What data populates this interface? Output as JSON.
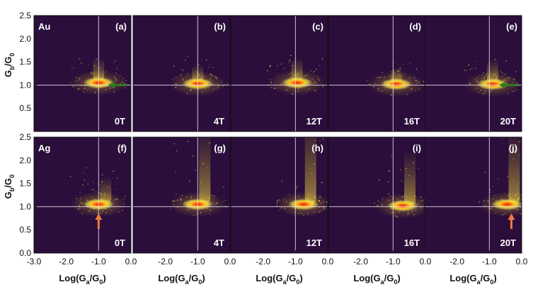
{
  "chart_data": {
    "type": "heatmap",
    "rows": [
      {
        "material": "Au",
        "panels": [
          {
            "id": "(a)",
            "field": "0T",
            "center_x": -1.0,
            "center_y": 1.05,
            "tail": 0.18,
            "arrow": "green-left"
          },
          {
            "id": "(b)",
            "field": "4T",
            "center_x": -1.0,
            "center_y": 1.03,
            "tail": 0.14
          },
          {
            "id": "(c)",
            "field": "12T",
            "center_x": -0.95,
            "center_y": 1.05,
            "tail": 0.18
          },
          {
            "id": "(d)",
            "field": "16T",
            "center_x": -0.9,
            "center_y": 1.02,
            "tail": 0.12
          },
          {
            "id": "(e)",
            "field": "20T",
            "center_x": -0.9,
            "center_y": 1.02,
            "tail": 0.18,
            "arrow": "green-left"
          }
        ]
      },
      {
        "material": "Ag",
        "panels": [
          {
            "id": "(f)",
            "field": "0T",
            "center_x": -1.0,
            "center_y": 1.05,
            "tail": 0.2,
            "arrow": "orange-up"
          },
          {
            "id": "(g)",
            "field": "4T",
            "center_x": -1.0,
            "center_y": 1.05,
            "tail": 0.55
          },
          {
            "id": "(h)",
            "field": "12T",
            "center_x": -0.75,
            "center_y": 1.05,
            "tail": 0.65
          },
          {
            "id": "(i)",
            "field": "16T",
            "center_x": -0.7,
            "center_y": 1.02,
            "tail": 0.4
          },
          {
            "id": "(j)",
            "field": "20T",
            "center_x": -0.45,
            "center_y": 1.05,
            "tail": 0.55,
            "arrow": "orange-up"
          }
        ]
      }
    ],
    "xlim": [
      -3.0,
      0.0
    ],
    "ylim": [
      0.0,
      2.5
    ],
    "x_ticks": [
      -3.0,
      -2.0,
      -1.0,
      0.0
    ],
    "x_tick_labels": [
      "-3.0",
      "-2.0",
      "-1.0",
      "0.0"
    ],
    "x_tick_labels_other": [
      "-2.0",
      "-1.0",
      "0.0"
    ],
    "y_ticks": [
      0.5,
      1.0,
      1.5,
      2.0,
      2.5
    ],
    "y_tick_labels": [
      "0.5",
      "1.0",
      "1.5",
      "2.0",
      "2.5"
    ],
    "y_tick_labels_bottom": [
      "0.0",
      "0.5",
      "1.0",
      "1.5",
      "2.0",
      "2.5"
    ],
    "xlabel_parts": [
      "Log(G",
      "a",
      "/G",
      "0",
      ")"
    ],
    "ylabel_parts": [
      "G",
      "b",
      "/G",
      "0"
    ],
    "reference_x": -1.0,
    "reference_y": 1.0,
    "colors": {
      "background": "#2b0e3b",
      "reference_line": "#e9e4f2",
      "green_arrow": "#2f7d1e",
      "orange_arrow": "#f07a40",
      "cmap": [
        "#2b0e3b",
        "#5a2060",
        "#b0304a",
        "#e8902a",
        "#ffe53a",
        "#ffff9a"
      ]
    }
  }
}
